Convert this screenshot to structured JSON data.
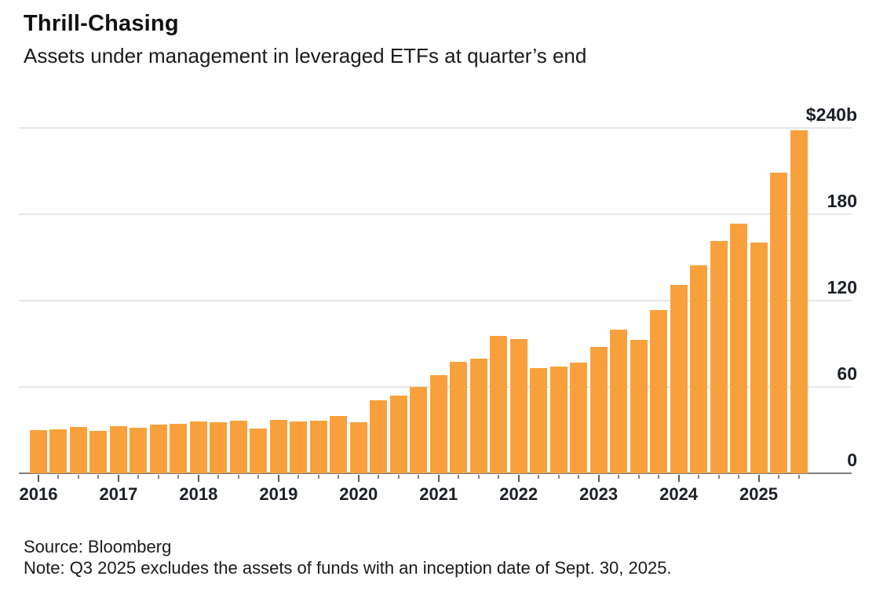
{
  "header": {
    "title": "Thrill-Chasing",
    "subtitle": "Assets under management in leveraged ETFs at quarter’s end"
  },
  "footer": {
    "source": "Source: Bloomberg",
    "note": "Note: Q3 2025 excludes the assets of funds with an inception date of Sept. 30, 2025."
  },
  "chart_data": {
    "type": "bar",
    "title": "Thrill-Chasing",
    "subtitle": "Assets under management in leveraged ETFs at quarter's end",
    "unit": "billions of US dollars",
    "categories": [
      "Q1 2016",
      "Q2 2016",
      "Q3 2016",
      "Q4 2016",
      "Q1 2017",
      "Q2 2017",
      "Q3 2017",
      "Q4 2017",
      "Q1 2018",
      "Q2 2018",
      "Q3 2018",
      "Q4 2018",
      "Q1 2019",
      "Q2 2019",
      "Q3 2019",
      "Q4 2019",
      "Q1 2020",
      "Q2 2020",
      "Q3 2020",
      "Q4 2020",
      "Q1 2021",
      "Q2 2021",
      "Q3 2021",
      "Q4 2021",
      "Q1 2022",
      "Q2 2022",
      "Q3 2022",
      "Q4 2022",
      "Q1 2023",
      "Q2 2023",
      "Q3 2023",
      "Q4 2023",
      "Q1 2024",
      "Q2 2024",
      "Q3 2024",
      "Q4 2024",
      "Q1 2025",
      "Q2 2025",
      "Q3 2025"
    ],
    "values": [
      30,
      30.5,
      32,
      29.5,
      33,
      31.5,
      34,
      34.5,
      36,
      35.5,
      36.5,
      31,
      37,
      36,
      36.5,
      40,
      35.5,
      51,
      54,
      60,
      68,
      77.5,
      79.5,
      95.5,
      93.5,
      73,
      74,
      77,
      88,
      100,
      92.5,
      113.5,
      131,
      144.5,
      161.5,
      173.5,
      160.5,
      209,
      238.5
    ],
    "x_year_labels": [
      "2016",
      "2017",
      "2018",
      "2019",
      "2020",
      "2021",
      "2022",
      "2023",
      "2024",
      "2025"
    ],
    "y_ticks": [
      {
        "label": "$240b",
        "value": 240
      },
      {
        "label": "180",
        "value": 180
      },
      {
        "label": "120",
        "value": 120
      },
      {
        "label": "60",
        "value": 60
      },
      {
        "label": "0",
        "value": 0
      }
    ],
    "ylim": [
      0,
      240
    ],
    "xlabel": "",
    "ylabel": "",
    "grid": true,
    "legend": false,
    "bar_color": "#f8a13c",
    "gridline_color": "#e6e6e6",
    "axis_color": "#7d7d7d",
    "text_color": "#1b1f27"
  }
}
